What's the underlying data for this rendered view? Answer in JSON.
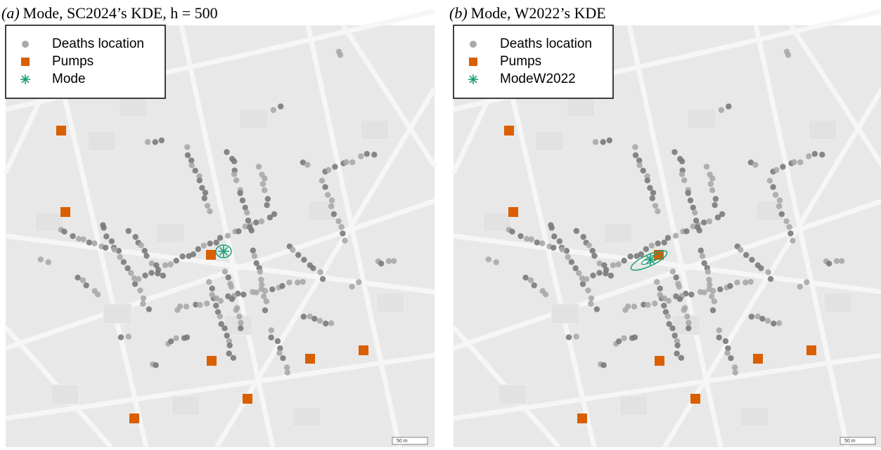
{
  "panels": [
    {
      "label": "(a)",
      "title": "Mode, SC2024’s KDE, h = 500",
      "legend": [
        "Deaths location",
        "Pumps",
        "Mode"
      ],
      "scale": "50 m"
    },
    {
      "label": "(b)",
      "title": "Mode, W2022’s KDE",
      "legend": [
        "Deaths location",
        "Pumps",
        "ModeW2022"
      ],
      "scale": "50 m"
    }
  ]
}
